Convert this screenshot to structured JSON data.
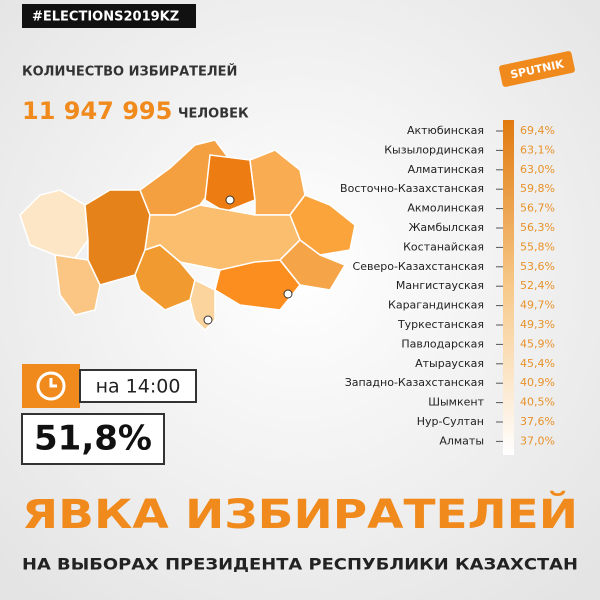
{
  "header": {
    "hashtag": "#ELECTIONS2019KZ",
    "voters_label": "КОЛИЧЕСТВО ИЗБИРАТЕЛЕЙ",
    "voters_count": "11 947 995",
    "voters_unit": "ЧЕЛОВЕК",
    "logo": "SPUTNIK"
  },
  "regions": [
    [
      "Актюбинская",
      "69,4%"
    ],
    [
      "Кызылординская",
      "63,1%"
    ],
    [
      "Алматинская",
      "63,0%"
    ],
    [
      "Восточно-Казахстанская",
      "59,8%"
    ],
    [
      "Акмолинская",
      "56,7%"
    ],
    [
      "Жамбылская",
      "56,3%"
    ],
    [
      "Костанайская",
      "55,8%"
    ],
    [
      "Северо-Казахстанская",
      "53,6%"
    ],
    [
      "Мангистауская",
      "52,4%"
    ],
    [
      "Карагандинская",
      "49,7%"
    ],
    [
      "Туркестанская",
      "49,3%"
    ],
    [
      "Павлодарская",
      "45,9%"
    ],
    [
      "Атырауская",
      "45,4%"
    ],
    [
      "Западно-Казахстанская",
      "40,9%"
    ],
    [
      "Шымкент",
      "40,5%"
    ],
    [
      "Нур-Султан",
      "37,6%"
    ],
    [
      "Алматы",
      "37,0%"
    ]
  ],
  "turnout": {
    "time": "на 14:00",
    "value": "51,8%"
  },
  "footer": {
    "headline": "ЯВКА ИЗБИРАТЕЛЕЙ",
    "subheadline": "НА ВЫБОРАХ ПРЕЗИДЕНТА РЕСПУБЛИКИ КАЗАХСТАН"
  }
}
